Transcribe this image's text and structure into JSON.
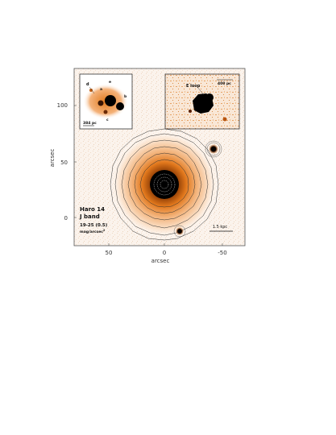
{
  "figure": {
    "y_axis_label": "arcsec",
    "x_axis_label": "arcsec",
    "x_ticks": [
      "50",
      "0",
      "-50"
    ],
    "y_ticks": [
      "100",
      "50",
      "0"
    ],
    "galaxy_label": "Haro 14",
    "band_label": "J band",
    "level_label": "19-25 (0.5)",
    "units_label": "mag/arcsec",
    "units_superscript": "2",
    "scale_bar_label": "1.5 kpc",
    "inset_left": {
      "scale_label": "384 pc",
      "knot_labels": [
        "d",
        "e",
        "a",
        "b",
        "c"
      ]
    },
    "inset_right": {
      "title": "E loop",
      "scale_label": "400 pc"
    }
  },
  "colors": {
    "core": "#000000",
    "halo_orange": "#e07a1e",
    "halo_light": "#f6c79a",
    "background_speckle": "#f3ddc8",
    "frame": "#555555"
  }
}
